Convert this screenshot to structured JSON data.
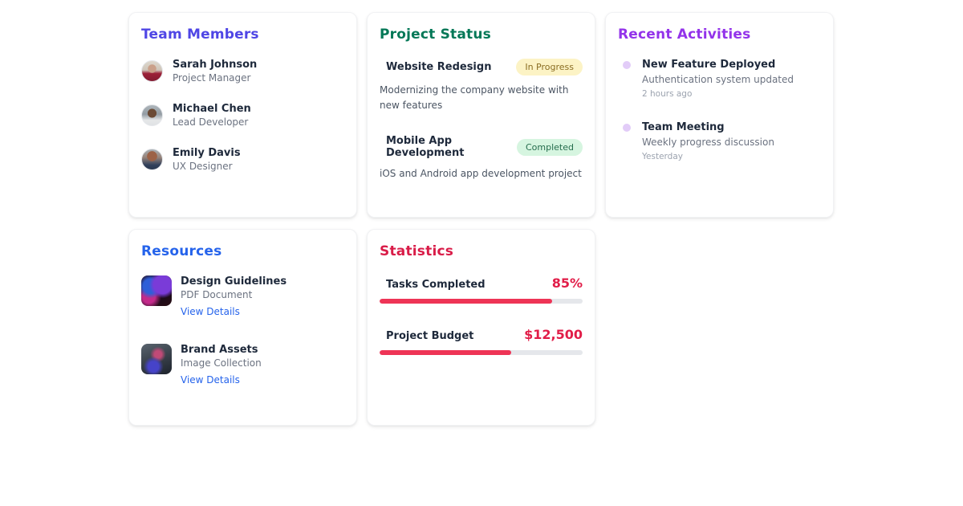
{
  "theme": {
    "team_title_color": "#4f46e5",
    "project_title_color": "#047857",
    "activities_title_color": "#9333ea",
    "resources_title_color": "#2563eb",
    "statistics_title_color": "#d91c48",
    "stat_value_color": "#e11d48",
    "stat_fill_color": "#ee3456",
    "activity_dot_color": "#e2ccf8",
    "link_color": "#2563eb"
  },
  "team_members": {
    "title": "Team Members",
    "members": [
      {
        "name": "Sarah Johnson",
        "role": "Project Manager",
        "avatar": "woman-red-top-photo"
      },
      {
        "name": "Michael Chen",
        "role": "Lead Developer",
        "avatar": "man-white-shirt-photo"
      },
      {
        "name": "Emily Davis",
        "role": "UX Designer",
        "avatar": "woman-auburn-hair-photo"
      }
    ]
  },
  "project_status": {
    "title": "Project Status",
    "projects": [
      {
        "name": "Website Redesign",
        "status": "In Progress",
        "status_bg": "#fcf3c5",
        "status_fg": "#8a6d22",
        "description": "Modernizing the company website with new features"
      },
      {
        "name": "Mobile App Development",
        "status": "Completed",
        "status_bg": "#d6f5e0",
        "status_fg": "#266d4d",
        "description": "iOS and Android app development project"
      }
    ]
  },
  "recent_activities": {
    "title": "Recent Activities",
    "activities": [
      {
        "title": "New Feature Deployed",
        "description": "Authentication system updated",
        "time": "2 hours ago"
      },
      {
        "title": "Team Meeting",
        "description": "Weekly progress discussion",
        "time": "Yesterday"
      }
    ]
  },
  "resources": {
    "title": "Resources",
    "items": [
      {
        "title": "Design Guidelines",
        "subtitle": "PDF Document",
        "link_label": "View Details",
        "thumbnail": "dark-neon-desk-photo"
      },
      {
        "title": "Brand Assets",
        "subtitle": "Image Collection",
        "link_label": "View Details",
        "thumbnail": "rgb-keyboard-desk-photo"
      }
    ]
  },
  "statistics": {
    "title": "Statistics",
    "stats": [
      {
        "label": "Tasks Completed",
        "value": "85%",
        "bar_width": "85%"
      },
      {
        "label": "Project Budget",
        "value": "$12,500",
        "bar_width": "65%"
      }
    ]
  }
}
